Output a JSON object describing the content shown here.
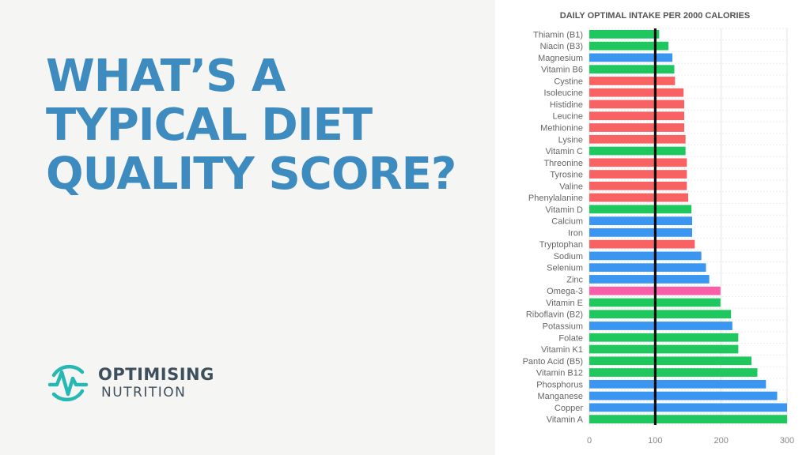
{
  "headline": {
    "lines": [
      "WHAT’S A",
      "TYPICAL DIET",
      "QUALITY SCORE?"
    ]
  },
  "logo": {
    "line1": "OPTIMISING",
    "line2": "NUTRITION",
    "icon": "heartbeat-circle-icon",
    "color": "#26b8b4"
  },
  "colors": {
    "headline": "#3d8bbf",
    "vitamin": "#1fc85f",
    "mineral": "#3a96f0",
    "amino_acid": "#f86262",
    "fatty_acid": "#f85fa8",
    "reference_line": "#000000"
  },
  "chart_data": {
    "type": "bar",
    "orientation": "horizontal",
    "title": "DAILY OPTIMAL INTAKE PER 2000 CALORIES",
    "xlabel": "",
    "ylabel": "",
    "xlim": [
      0,
      300
    ],
    "xticks": [
      0,
      100,
      200,
      300
    ],
    "grid": true,
    "reference_line": 100,
    "categories": [
      "Thiamin (B1)",
      "Niacin (B3)",
      "Magnesium",
      "Vitamin B6",
      "Cystine",
      "Isoleucine",
      "Histidine",
      "Leucine",
      "Methionine",
      "Lysine",
      "Vitamin C",
      "Threonine",
      "Tyrosine",
      "Valine",
      "Phenylalanine",
      "Vitamin D",
      "Calcium",
      "Iron",
      "Tryptophan",
      "Sodium",
      "Selenium",
      "Zinc",
      "Omega-3",
      "Vitamin E",
      "Riboflavin (B2)",
      "Potassium",
      "Folate",
      "Vitamin K1",
      "Panto Acid (B5)",
      "Vitamin B12",
      "Phosphorus",
      "Manganese",
      "Copper",
      "Vitamin A"
    ],
    "values": [
      106,
      120,
      126,
      129,
      130,
      143,
      144,
      144,
      144,
      146,
      146,
      148,
      148,
      148,
      150,
      155,
      156,
      156,
      160,
      170,
      177,
      182,
      199,
      199,
      215,
      217,
      226,
      226,
      246,
      255,
      268,
      285,
      300,
      300
    ],
    "bar_colors": [
      "#1fc85f",
      "#1fc85f",
      "#3a96f0",
      "#1fc85f",
      "#f86262",
      "#f86262",
      "#f86262",
      "#f86262",
      "#f86262",
      "#f86262",
      "#1fc85f",
      "#f86262",
      "#f86262",
      "#f86262",
      "#f86262",
      "#1fc85f",
      "#3a96f0",
      "#3a96f0",
      "#f86262",
      "#3a96f0",
      "#3a96f0",
      "#3a96f0",
      "#f85fa8",
      "#1fc85f",
      "#1fc85f",
      "#3a96f0",
      "#1fc85f",
      "#1fc85f",
      "#1fc85f",
      "#1fc85f",
      "#3a96f0",
      "#3a96f0",
      "#3a96f0",
      "#1fc85f"
    ]
  }
}
